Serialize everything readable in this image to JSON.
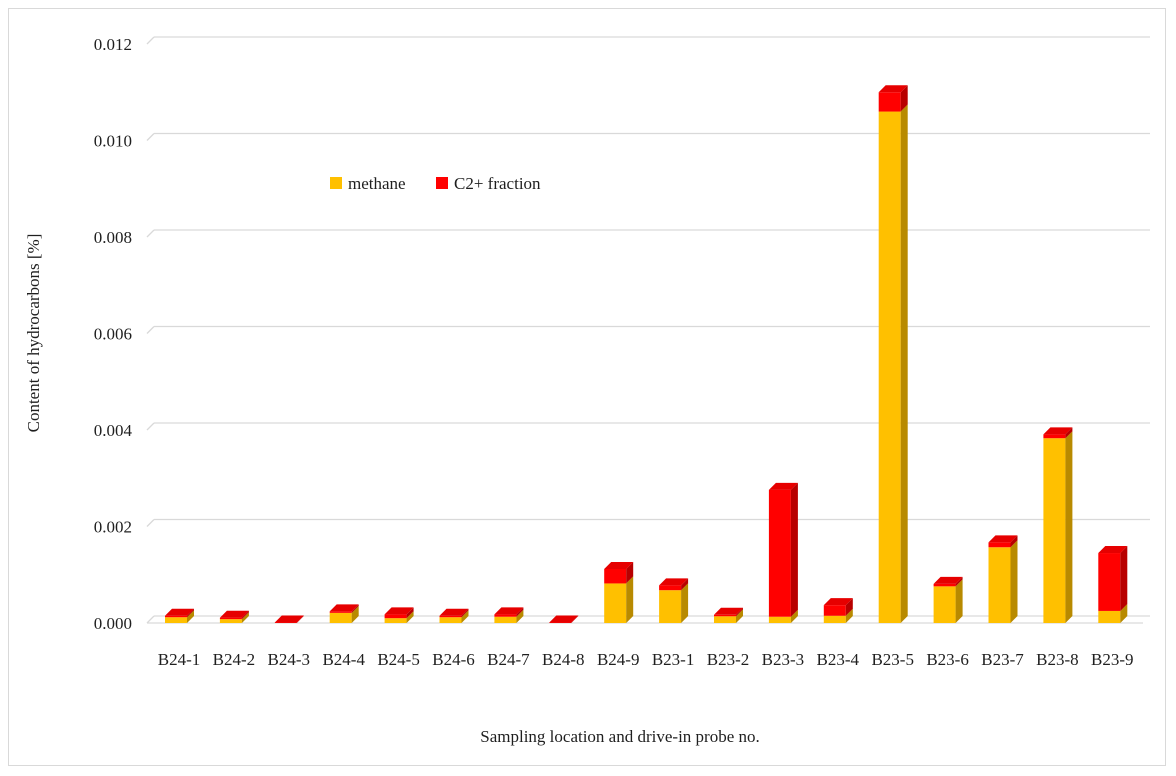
{
  "chart_data": {
    "type": "bar",
    "stacked": true,
    "three_d": true,
    "xlabel": "Sampling location and drive-in probe no.",
    "ylabel": "Content of hydrocarbons [%]",
    "ylim": [
      0,
      0.012
    ],
    "yticks": [
      "0.000",
      "0.002",
      "0.004",
      "0.006",
      "0.008",
      "0.010",
      "0.012"
    ],
    "grid": true,
    "legend_position": "top-left inside plot",
    "categories": [
      "B24-1",
      "B24-2",
      "B24-3",
      "B24-4",
      "B24-5",
      "B24-6",
      "B24-7",
      "B24-8",
      "B24-9",
      "B23-1",
      "B23-2",
      "B23-3",
      "B23-4",
      "B23-5",
      "B23-6",
      "B23-7",
      "B23-8",
      "B23-9"
    ],
    "series": [
      {
        "name": "methane",
        "color": "#ffc000",
        "values": [
          0.00012,
          8e-05,
          0.0,
          0.00021,
          0.0001,
          0.00012,
          0.00013,
          0.0,
          0.00082,
          0.00068,
          0.00014,
          0.00013,
          0.00015,
          0.0106,
          0.00076,
          0.00157,
          0.00383,
          0.00025
        ]
      },
      {
        "name": "C2+ fraction",
        "color": "#ff0000",
        "values": [
          3e-05,
          3e-05,
          1e-05,
          3e-05,
          8e-05,
          3e-05,
          5e-05,
          1e-05,
          0.0003,
          0.0001,
          3e-05,
          0.00263,
          0.00022,
          0.0004,
          5e-05,
          0.0001,
          8e-05,
          0.0012
        ]
      }
    ]
  }
}
